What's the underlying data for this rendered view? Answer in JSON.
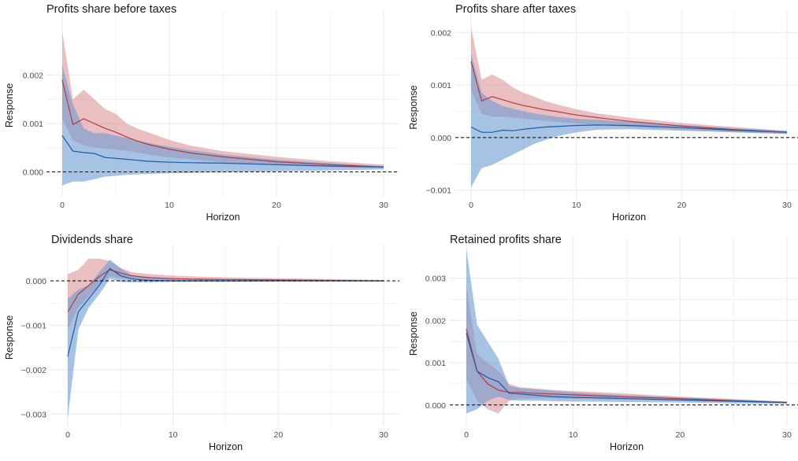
{
  "figure": {
    "colors": {
      "red_band": "#d98a8e",
      "red_line": "#b53a3f",
      "blue_band": "#6c9bd2",
      "blue_line": "#1f5aa6",
      "grid": "#ebebeb",
      "text": "#1a1a1a",
      "tick_text": "#4d4d4d"
    }
  },
  "chart_data": [
    {
      "type": "line",
      "title": "Profits share before taxes",
      "xlabel": "Horizon",
      "ylabel": "Response",
      "xlim": [
        0,
        30
      ],
      "ylim": [
        -0.00035,
        0.0031
      ],
      "xticks": [
        0,
        10,
        20,
        30
      ],
      "xtick_labels": [
        "0",
        "10",
        "20",
        "30"
      ],
      "yticks": [
        0,
        0.001,
        0.002
      ],
      "ytick_labels": [
        "0.000",
        "0.001",
        "0.002"
      ],
      "grid": true,
      "reference_line": 0,
      "x": [
        0,
        1,
        2,
        3,
        4,
        5,
        6,
        7,
        8,
        10,
        12,
        15,
        20,
        25,
        30
      ],
      "series": [
        {
          "color": "red",
          "values": [
            0.0019,
            0.00098,
            0.0011,
            0.001,
            0.0009,
            0.00082,
            0.00072,
            0.00064,
            0.00057,
            0.00047,
            0.00039,
            0.00031,
            0.00021,
            0.00015,
            0.0001
          ],
          "lower": [
            0.0011,
            0.00065,
            0.00055,
            0.0005,
            0.00048,
            0.00046,
            0.00044,
            0.0004,
            0.00036,
            0.0003,
            0.00026,
            0.0002,
            0.00014,
            0.0001,
            8e-05
          ],
          "upper": [
            0.0029,
            0.0015,
            0.0017,
            0.0015,
            0.0013,
            0.0012,
            0.001,
            0.0009,
            0.00082,
            0.00066,
            0.00054,
            0.00043,
            0.00031,
            0.00022,
            0.00015
          ]
        },
        {
          "color": "blue",
          "values": [
            0.00075,
            0.00043,
            0.0004,
            0.00038,
            0.0003,
            0.00028,
            0.00026,
            0.00024,
            0.00022,
            0.0002,
            0.00019,
            0.00018,
            0.00015,
            0.00012,
            0.0001
          ],
          "lower": [
            -0.00028,
            -0.0002,
            -0.0002,
            -0.00015,
            -0.0001,
            -8e-05,
            -6e-05,
            -5e-05,
            -4e-05,
            -3e-05,
            -2e-05,
            -1e-05,
            1e-05,
            3e-05,
            5e-05
          ],
          "upper": [
            0.0022,
            0.0014,
            0.0009,
            0.0008,
            0.0008,
            0.00075,
            0.0007,
            0.00065,
            0.0006,
            0.00052,
            0.00045,
            0.00036,
            0.00025,
            0.00018,
            0.00012
          ]
        }
      ]
    },
    {
      "type": "line",
      "title": "Profits share after taxes",
      "xlabel": "Horizon",
      "ylabel": "Response",
      "xlim": [
        0,
        30
      ],
      "ylim": [
        -0.00105,
        0.0022
      ],
      "xticks": [
        0,
        10,
        20,
        30
      ],
      "xtick_labels": [
        "0",
        "10",
        "20",
        "30"
      ],
      "yticks": [
        -0.001,
        0,
        0.001,
        0.002
      ],
      "ytick_labels": [
        "−0.001",
        "0.000",
        "0.001",
        "0.002"
      ],
      "grid": true,
      "reference_line": 0,
      "x": [
        0,
        1,
        2,
        3,
        4,
        5,
        6,
        7,
        8,
        10,
        12,
        15,
        20,
        25,
        30
      ],
      "series": [
        {
          "color": "red",
          "values": [
            0.00145,
            0.0007,
            0.00078,
            0.00072,
            0.00066,
            0.00061,
            0.00057,
            0.00053,
            0.0005,
            0.00043,
            0.00038,
            0.00031,
            0.00022,
            0.00015,
            0.0001
          ],
          "lower": [
            0.0009,
            0.00045,
            0.0004,
            0.0004,
            0.00038,
            0.00036,
            0.00034,
            0.00032,
            0.0003,
            0.00027,
            0.00024,
            0.0002,
            0.00015,
            0.0001,
            7e-05
          ],
          "upper": [
            0.0021,
            0.0011,
            0.0012,
            0.0011,
            0.00095,
            0.00085,
            0.00078,
            0.0007,
            0.00064,
            0.00054,
            0.00046,
            0.00038,
            0.00028,
            0.0002,
            0.00013
          ]
        },
        {
          "color": "blue",
          "values": [
            0.0002,
            0.0001,
            0.0001,
            0.00014,
            0.00013,
            0.00016,
            0.00018,
            0.0002,
            0.00021,
            0.00023,
            0.00024,
            0.00023,
            0.00019,
            0.00014,
            0.0001
          ],
          "lower": [
            -0.00095,
            -0.00058,
            -0.00052,
            -0.00042,
            -0.00032,
            -0.00022,
            -0.00012,
            -5e-05,
            2e-05,
            0.0001,
            0.00015,
            0.00016,
            0.00013,
            0.0001,
            7e-05
          ],
          "upper": [
            0.0016,
            0.00085,
            0.0007,
            0.0006,
            0.00055,
            0.0005,
            0.00046,
            0.00043,
            0.0004,
            0.00036,
            0.00034,
            0.0003,
            0.00024,
            0.00018,
            0.00013
          ]
        }
      ]
    },
    {
      "type": "line",
      "title": "Dividends share",
      "xlabel": "Horizon",
      "ylabel": "Response",
      "xlim": [
        0,
        30
      ],
      "ylim": [
        -0.0031,
        0.00055
      ],
      "xticks": [
        0,
        10,
        20,
        30
      ],
      "xtick_labels": [
        "0",
        "10",
        "20",
        "30"
      ],
      "yticks": [
        -0.003,
        -0.002,
        -0.001,
        0
      ],
      "ytick_labels": [
        "−0.003",
        "−0.002",
        "−0.001",
        "0.000"
      ],
      "grid": true,
      "reference_line": 0,
      "x": [
        0,
        1,
        2,
        3,
        4,
        5,
        6,
        7,
        8,
        10,
        12,
        15,
        20,
        25,
        30
      ],
      "series": [
        {
          "color": "red",
          "values": [
            -0.0007,
            -0.0003,
            -0.0001,
            0.0001,
            0.00025,
            0.00018,
            0.00012,
            9e-05,
            7e-05,
            5e-05,
            4e-05,
            3e-05,
            2e-05,
            1e-05,
            0
          ],
          "lower": [
            -0.0011,
            -0.0006,
            -0.00035,
            -0.0001,
            0.0001,
            6e-05,
            3e-05,
            2e-05,
            1e-05,
            0,
            0,
            -1e-05,
            -1e-05,
            -1e-05,
            -1e-05
          ],
          "upper": [
            0.00015,
            0.00025,
            0.0005,
            0.0005,
            0.00045,
            0.0003,
            0.0002,
            0.00017,
            0.00015,
            0.00012,
            0.0001,
            8e-05,
            6e-05,
            4e-05,
            2e-05
          ]
        },
        {
          "color": "blue",
          "values": [
            -0.0017,
            -0.0007,
            -0.0004,
            -0.0001,
            0.00028,
            0.00012,
            5e-05,
            2e-05,
            1e-05,
            0,
            0,
            0,
            0,
            0,
            0
          ],
          "lower": [
            -0.0031,
            -0.0011,
            -0.0006,
            -0.0003,
            5e-05,
            -2e-05,
            -3e-05,
            -3e-05,
            -3e-05,
            -2e-05,
            -2e-05,
            -2e-05,
            -1e-05,
            -1e-05,
            -1e-05
          ],
          "upper": [
            -0.0004,
            -0.0002,
            -0.0001,
            0.0002,
            0.00048,
            0.00028,
            0.00014,
            0.0001,
            8e-05,
            6e-05,
            5e-05,
            4e-05,
            3e-05,
            2e-05,
            1e-05
          ]
        }
      ]
    },
    {
      "type": "line",
      "title": "Retained profits share",
      "xlabel": "Horizon",
      "ylabel": "Response",
      "xlim": [
        0,
        30
      ],
      "ylim": [
        -0.00032,
        0.0037
      ],
      "xticks": [
        0,
        10,
        20,
        30
      ],
      "xtick_labels": [
        "0",
        "10",
        "20",
        "30"
      ],
      "yticks": [
        0,
        0.001,
        0.002,
        0.003
      ],
      "ytick_labels": [
        "0.000",
        "0.001",
        "0.002",
        "0.003"
      ],
      "grid": true,
      "reference_line": 0,
      "x": [
        0,
        1,
        2,
        3,
        4,
        5,
        6,
        7,
        8,
        10,
        12,
        15,
        20,
        25,
        30
      ],
      "series": [
        {
          "color": "red",
          "values": [
            0.0018,
            0.0008,
            0.0005,
            0.00035,
            0.0003,
            0.0003,
            0.00028,
            0.00027,
            0.00026,
            0.00024,
            0.00022,
            0.00019,
            0.00015,
            0.0001,
            6e-05
          ],
          "lower": [
            0.0006,
            0.0001,
            -0.0001,
            -0.0002,
            0.0001,
            0.00015,
            0.00016,
            0.00016,
            0.00016,
            0.00015,
            0.00014,
            0.00012,
            0.0001,
            7e-05,
            4e-05
          ],
          "upper": [
            0.0028,
            0.0012,
            0.001,
            0.0008,
            0.0005,
            0.00042,
            0.0004,
            0.00038,
            0.00036,
            0.00033,
            0.00031,
            0.00027,
            0.0002,
            0.00014,
            8e-05
          ]
        },
        {
          "color": "blue",
          "values": [
            0.0017,
            0.0008,
            0.00065,
            0.00055,
            0.00028,
            0.00026,
            0.00024,
            0.00022,
            0.0002,
            0.00018,
            0.00017,
            0.00015,
            0.00012,
            9e-05,
            6e-05
          ],
          "lower": [
            -0.0002,
            -0.0001,
            0.0001,
            0.0002,
            0.00012,
            0.0001,
            0.0001,
            0.0001,
            9e-05,
            8e-05,
            8e-05,
            7e-05,
            6e-05,
            4e-05,
            3e-05
          ],
          "upper": [
            0.0037,
            0.0019,
            0.0015,
            0.0011,
            0.00045,
            0.0004,
            0.00038,
            0.00036,
            0.00034,
            0.0003,
            0.00027,
            0.00023,
            0.00018,
            0.00013,
            8e-05
          ]
        }
      ]
    }
  ]
}
